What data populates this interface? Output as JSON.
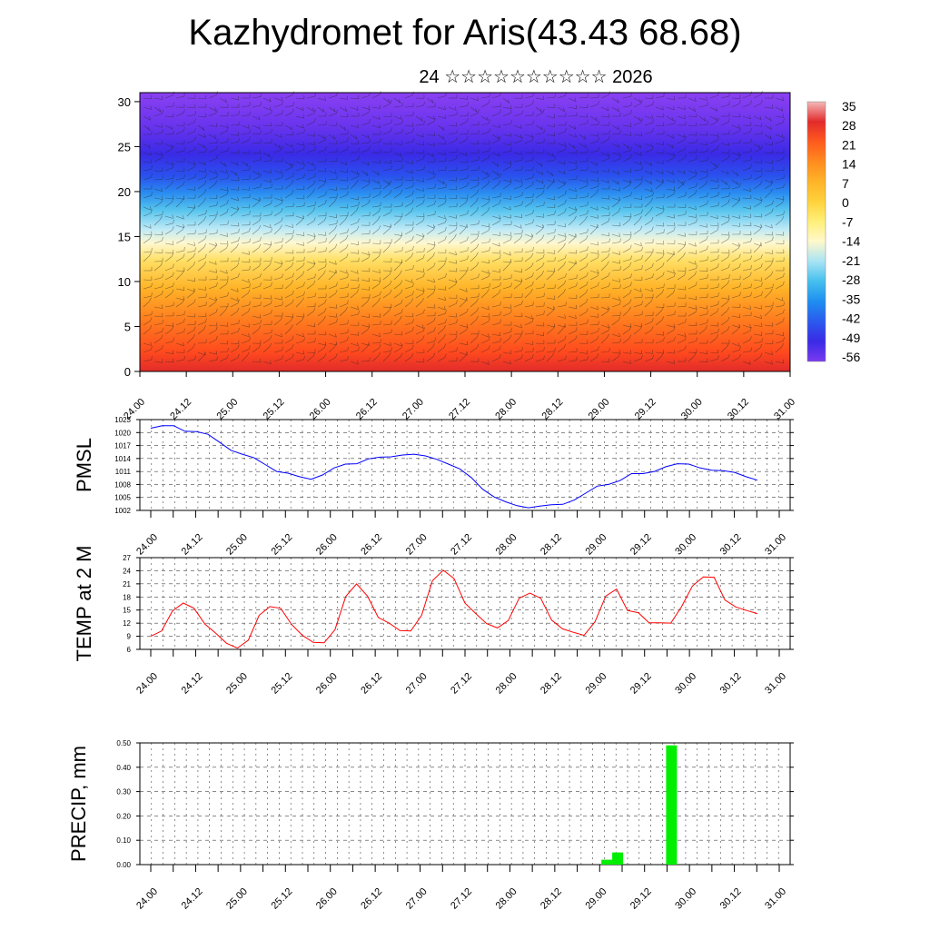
{
  "title": "Kazhydromet for Aris(43.43 68.68)",
  "subtitle": "24 ☆☆☆☆☆☆☆☆☆☆ 2026",
  "chart_data": [
    {
      "type": "heatmap",
      "name": "cross-section",
      "title": "",
      "y_ticks": [
        "0",
        "5",
        "10",
        "15",
        "20",
        "25",
        "30"
      ],
      "ylim": [
        0,
        31
      ],
      "x_ticks": [
        "24.00",
        "24.12",
        "25.00",
        "25.12",
        "26.00",
        "26.12",
        "27.00",
        "27.12",
        "28.00",
        "28.12",
        "29.00",
        "29.12",
        "30.00",
        "30.12",
        "31.00"
      ],
      "overlay": "wind barbs",
      "colorbar": {
        "labels": [
          "35",
          "28",
          "21",
          "14",
          "7",
          "0",
          "-7",
          "-14",
          "-21",
          "-28",
          "-35",
          "-42",
          "-49",
          "-56"
        ],
        "colors": [
          "#f4b8b8",
          "#e22b2b",
          "#ff5a1e",
          "#ff8c1e",
          "#ffb428",
          "#ffd23c",
          "#fff07a",
          "#fff8cc",
          "#a8e4f4",
          "#45bfee",
          "#1e8ef0",
          "#2a5aee",
          "#3a2ae6",
          "#7a3af0"
        ]
      }
    },
    {
      "type": "line",
      "name": "pmsl",
      "ylabel": "PMSL",
      "y_ticks": [
        "1023",
        "1020",
        "1017",
        "1014",
        "1011",
        "1008",
        "1005",
        "1002"
      ],
      "ylim": [
        1002,
        1023
      ],
      "x_ticks": [
        "24.00",
        "24.12",
        "25.00",
        "25.12",
        "26.00",
        "26.12",
        "27.00",
        "27.12",
        "28.00",
        "28.12",
        "29.00",
        "29.12",
        "30.00",
        "30.12",
        "31.00"
      ],
      "color": "#0000ff",
      "values": [
        1021.0,
        1021.6,
        1021.6,
        1020.3,
        1020.2,
        1019.6,
        1017.8,
        1015.9,
        1015.0,
        1014.2,
        1012.6,
        1011.0,
        1010.6,
        1009.8,
        1009.2,
        1010.2,
        1011.8,
        1012.7,
        1012.8,
        1013.9,
        1014.3,
        1014.4,
        1014.8,
        1015.0,
        1014.6,
        1013.8,
        1012.7,
        1011.6,
        1009.6,
        1006.9,
        1005.1,
        1004.0,
        1003.1,
        1002.6,
        1003.0,
        1003.3,
        1003.4,
        1004.4,
        1006.0,
        1007.6,
        1008.0,
        1008.9,
        1010.5,
        1010.5,
        1011.0,
        1012.1,
        1012.8,
        1012.7,
        1011.8,
        1011.3,
        1011.2,
        1010.8,
        1009.8,
        1009.0
      ]
    },
    {
      "type": "line",
      "name": "temp2m",
      "ylabel": "TEMP at 2 M",
      "y_ticks": [
        "27",
        "24",
        "21",
        "18",
        "15",
        "12",
        "9",
        "6"
      ],
      "ylim": [
        6,
        27
      ],
      "x_ticks": [
        "24.00",
        "24.12",
        "25.00",
        "25.12",
        "26.00",
        "26.12",
        "27.00",
        "27.12",
        "28.00",
        "28.12",
        "29.00",
        "29.12",
        "30.00",
        "30.12",
        "31.00"
      ],
      "color": "#ff0000",
      "values": [
        9.0,
        10.2,
        14.8,
        16.6,
        15.4,
        11.8,
        9.7,
        7.4,
        6.3,
        8.1,
        13.8,
        15.8,
        15.4,
        11.7,
        9.2,
        7.6,
        7.5,
        10.5,
        18.1,
        21.0,
        18.2,
        13.3,
        12.0,
        10.3,
        10.2,
        13.8,
        21.7,
        24.1,
        22.2,
        16.6,
        14.2,
        11.9,
        10.9,
        12.6,
        17.7,
        18.9,
        17.7,
        12.7,
        10.7,
        9.9,
        9.2,
        12.3,
        18.2,
        19.8,
        14.9,
        14.4,
        12.1,
        12.1,
        12.0,
        15.8,
        20.5,
        22.6,
        22.5,
        17.3,
        15.7,
        14.9,
        14.2
      ]
    },
    {
      "type": "bar",
      "name": "precip",
      "ylabel": "PRECIP, mm",
      "y_ticks": [
        "0.50",
        "0.40",
        "0.30",
        "0.20",
        "0.10",
        "0.00"
      ],
      "ylim": [
        0,
        0.5
      ],
      "x_ticks": [
        "24.00",
        "24.12",
        "25.00",
        "25.12",
        "26.00",
        "26.12",
        "27.00",
        "27.12",
        "28.00",
        "28.12",
        "29.00",
        "29.12",
        "30.00",
        "30.12",
        "31.00"
      ],
      "color": "#00ee00",
      "bars": [
        {
          "x": 29.08,
          "value": 0.02
        },
        {
          "x": 29.2,
          "value": 0.05
        },
        {
          "x": 29.8,
          "value": 0.49
        }
      ]
    }
  ]
}
